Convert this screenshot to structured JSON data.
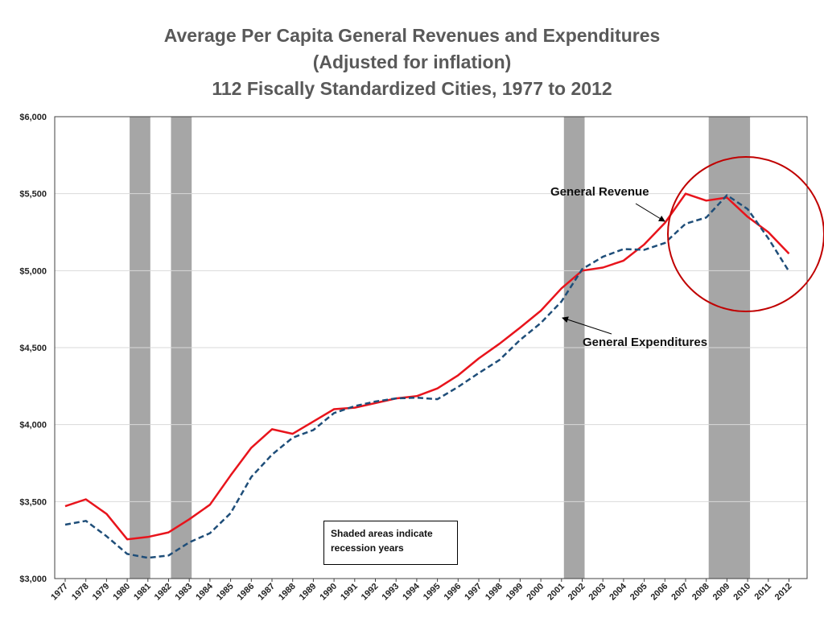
{
  "chart_data": {
    "type": "line",
    "title": [
      "Average Per Capita General Revenues and Expenditures",
      "(Adjusted for inflation)",
      "112 Fiscally Standardized Cities, 1977 to 2012"
    ],
    "xlabel": "",
    "ylabel": "",
    "ylim": [
      3000,
      6000
    ],
    "yticks": [
      3000,
      3500,
      4000,
      4500,
      5000,
      5500,
      6000
    ],
    "ytick_labels": [
      "$3,000",
      "$3,500",
      "$4,000",
      "$4,500",
      "$5,000",
      "$5,500",
      "$6,000"
    ],
    "categories": [
      "1977",
      "1978",
      "1979",
      "1980",
      "1981",
      "1982",
      "1983",
      "1984",
      "1985",
      "1986",
      "1987",
      "1988",
      "1989",
      "1990",
      "1991",
      "1992",
      "1993",
      "1994",
      "1995",
      "1996",
      "1997",
      "1998",
      "1999",
      "2000",
      "2001",
      "2002",
      "2003",
      "2004",
      "2005",
      "2006",
      "2007",
      "2008",
      "2009",
      "2010",
      "2011",
      "2012"
    ],
    "grid": true,
    "series": [
      {
        "name": "General Revenue",
        "color": "#e8141c",
        "style": "solid",
        "values": [
          3470,
          3515,
          3420,
          3255,
          3270,
          3300,
          3385,
          3480,
          3670,
          3850,
          3970,
          3940,
          4020,
          4100,
          4110,
          4140,
          4170,
          4185,
          4235,
          4320,
          4430,
          4525,
          4630,
          4740,
          4885,
          5000,
          5020,
          5065,
          5170,
          5310,
          5500,
          5455,
          5475,
          5350,
          5250,
          5110
        ]
      },
      {
        "name": "General Expenditures",
        "color": "#1f4e79",
        "style": "dashed",
        "values": [
          3350,
          3375,
          3275,
          3160,
          3135,
          3150,
          3235,
          3295,
          3425,
          3660,
          3805,
          3915,
          3965,
          4075,
          4120,
          4150,
          4170,
          4175,
          4165,
          4245,
          4335,
          4420,
          4550,
          4660,
          4800,
          5010,
          5090,
          5140,
          5135,
          5180,
          5305,
          5345,
          5490,
          5400,
          5210,
          4995
        ]
      }
    ],
    "recession_bands": [
      {
        "start": 1980,
        "end": 1981
      },
      {
        "start": 1982,
        "end": 1983
      },
      {
        "start": 2001,
        "end": 2002
      },
      {
        "start": 2008,
        "end": 2010
      }
    ],
    "annotations": {
      "revenue_label": "General Revenue",
      "expenditure_label": "General Expenditures",
      "note": [
        "Shaded areas indicate",
        "recession years"
      ],
      "highlight": "circle"
    },
    "colors": {
      "band": "#a6a6a6",
      "grid": "#d9d9d9",
      "circle": "#c00000",
      "title": "#595959"
    }
  }
}
